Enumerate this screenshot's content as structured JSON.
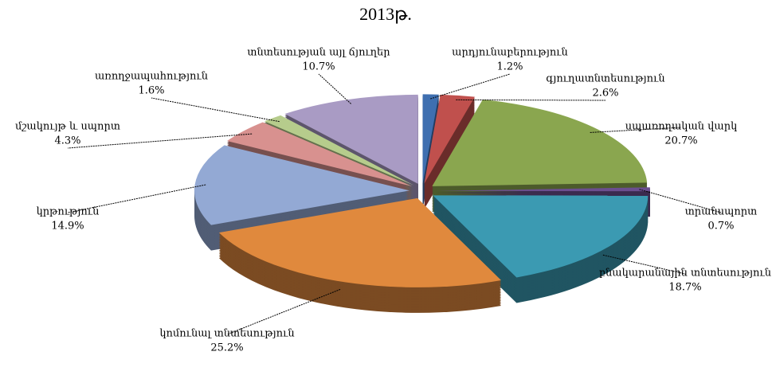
{
  "chart_data": {
    "type": "pie",
    "title": "2013թ.",
    "categories": [
      "արդյունաբերություն",
      "գյուղատնտեսություն",
      "սպառողական վարկ",
      "տրանսպորտ",
      "բնակարանային տնտեսություն",
      "կոմունալ տնտեսություն",
      "կրթություն",
      "մշակույթ և սպորտ",
      "առողջապահություն",
      "տնտեսության այլ ճյուղեր"
    ],
    "values": [
      1.2,
      2.6,
      20.7,
      0.7,
      18.7,
      25.2,
      14.9,
      4.3,
      1.6,
      10.7
    ],
    "value_labels": [
      "1.2%",
      "2.6%",
      "20.7%",
      "0.7%",
      "18.7%",
      "25.2%",
      "14.9%",
      "4.3%",
      "1.6%",
      "10.7%"
    ],
    "colors": [
      "#3f6fb0",
      "#c0504d",
      "#8aa64f",
      "#6b4e8f",
      "#3b9ab2",
      "#e0893d",
      "#93a9d4",
      "#d8918f",
      "#b6cc8c",
      "#a99bc4"
    ]
  }
}
